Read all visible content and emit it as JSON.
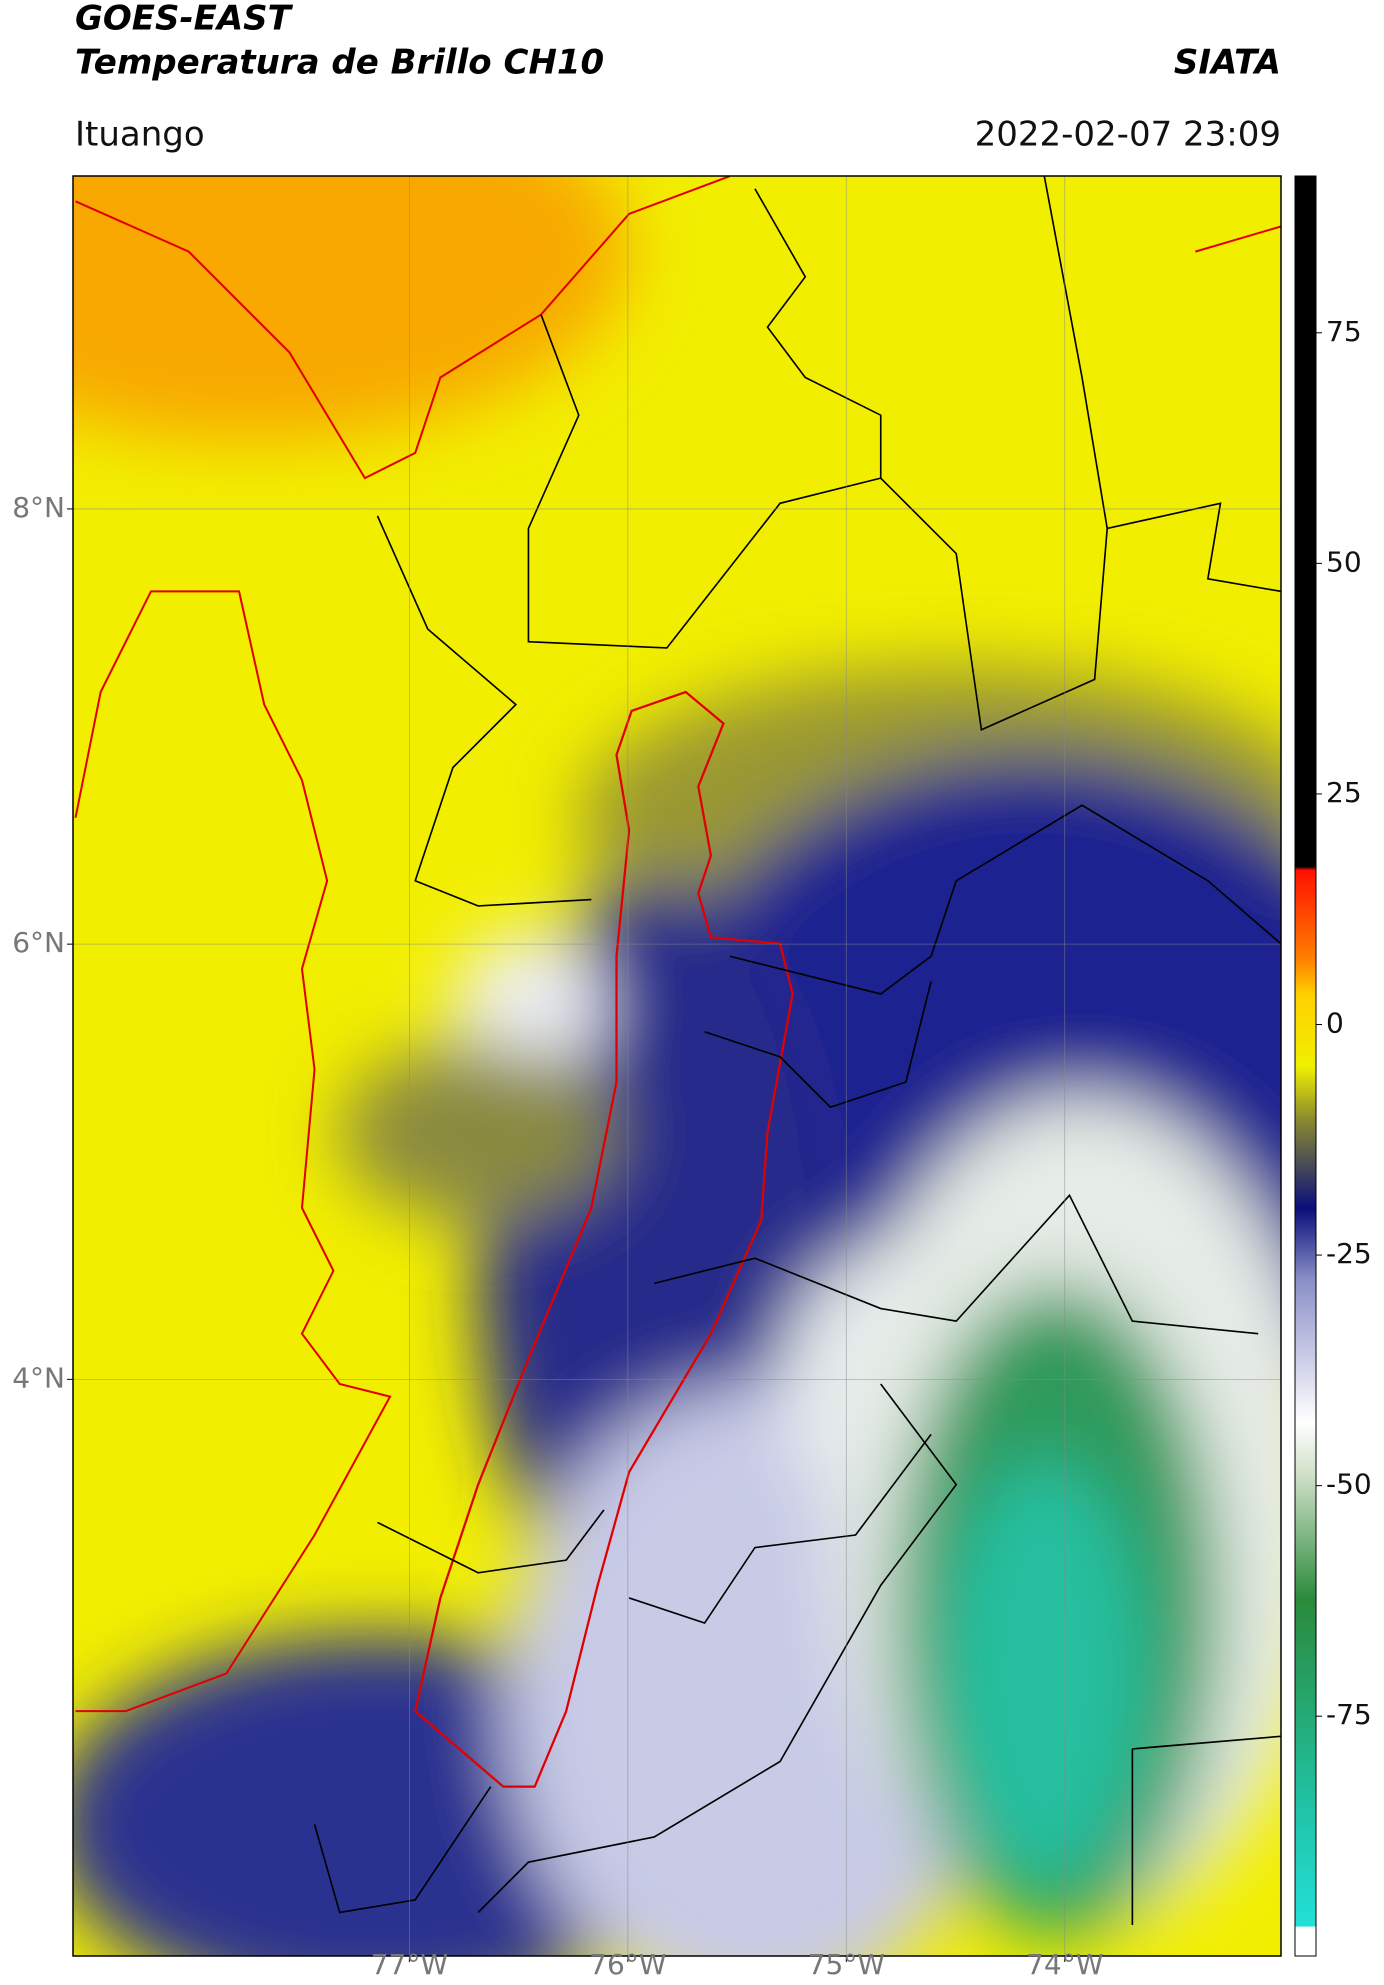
{
  "header": {
    "satellite": "GOES-EAST",
    "product": "Temperatura de Brillo CH10",
    "source": "SIATA",
    "region": "Ituango",
    "datetime": "2022-02-07 23:09"
  },
  "map": {
    "latlim": [
      1.35,
      9.53
    ],
    "lonlim": [
      -78.54,
      -73.01
    ],
    "lat_ticks": [
      {
        "value": 8,
        "label": "8°N"
      },
      {
        "value": 6,
        "label": "6°N"
      },
      {
        "value": 4,
        "label": "4°N"
      }
    ],
    "lon_ticks": [
      {
        "value": -77,
        "label": "77°W"
      },
      {
        "value": -76,
        "label": "76°W"
      },
      {
        "value": -75,
        "label": "75°W"
      },
      {
        "value": -74,
        "label": "74°W"
      }
    ],
    "grid": true
  },
  "colorbar": {
    "clim": [
      -101,
      92
    ],
    "ticks": [
      75,
      50,
      25,
      0,
      -25,
      -50,
      -75
    ]
  }
}
